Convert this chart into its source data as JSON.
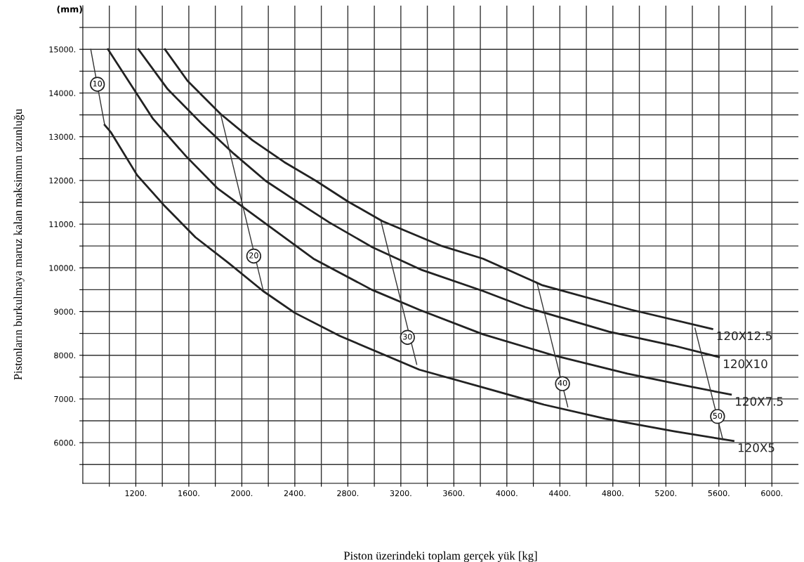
{
  "chart_data": {
    "type": "line",
    "xlabel": "Piston üzerindeki toplam gerçek yük [kg]",
    "ylabel": "Pistonların burkulmaya maruz kalan maksimum uzunluğu",
    "xlim": [
      800,
      6200
    ],
    "ylim": [
      5070,
      16000
    ],
    "xticks": [
      {
        "value": 1000,
        "label": null
      },
      {
        "value": 1200,
        "label": "1200."
      },
      {
        "value": 1400,
        "label": null
      },
      {
        "value": 1600,
        "label": "1600."
      },
      {
        "value": 1800,
        "label": null
      },
      {
        "value": 2000,
        "label": "2000."
      },
      {
        "value": 2200,
        "label": null
      },
      {
        "value": 2400,
        "label": "2400."
      },
      {
        "value": 2600,
        "label": null
      },
      {
        "value": 2800,
        "label": "2800."
      },
      {
        "value": 3000,
        "label": null
      },
      {
        "value": 3200,
        "label": "3200."
      },
      {
        "value": 3400,
        "label": null
      },
      {
        "value": 3600,
        "label": "3600."
      },
      {
        "value": 3800,
        "label": null
      },
      {
        "value": 4000,
        "label": "4000."
      },
      {
        "value": 4200,
        "label": null
      },
      {
        "value": 4400,
        "label": "4400."
      },
      {
        "value": 4600,
        "label": null
      },
      {
        "value": 4800,
        "label": "4800."
      },
      {
        "value": 5000,
        "label": null
      },
      {
        "value": 5200,
        "label": "5200."
      },
      {
        "value": 5400,
        "label": null
      },
      {
        "value": 5600,
        "label": "5600."
      },
      {
        "value": 5800,
        "label": null
      },
      {
        "value": 6000,
        "label": "6000."
      }
    ],
    "yticks": [
      {
        "value": 5500,
        "label": null
      },
      {
        "value": 6000,
        "label": "6000."
      },
      {
        "value": 6500,
        "label": null
      },
      {
        "value": 7000,
        "label": "7000."
      },
      {
        "value": 7500,
        "label": null
      },
      {
        "value": 8000,
        "label": "8000."
      },
      {
        "value": 8500,
        "label": null
      },
      {
        "value": 9000,
        "label": "9000."
      },
      {
        "value": 9500,
        "label": null
      },
      {
        "value": 10000,
        "label": "10000."
      },
      {
        "value": 10500,
        "label": null
      },
      {
        "value": 11000,
        "label": "11000."
      },
      {
        "value": 11500,
        "label": null
      },
      {
        "value": 12000,
        "label": "12000."
      },
      {
        "value": 12500,
        "label": null
      },
      {
        "value": 13000,
        "label": "13000."
      },
      {
        "value": 13500,
        "label": null
      },
      {
        "value": 14000,
        "label": "14000."
      },
      {
        "value": 14500,
        "label": null
      },
      {
        "value": 15000,
        "label": "15000."
      },
      {
        "value": 15500,
        "label": null
      }
    ],
    "grid": true,
    "legend": false,
    "marker": "none",
    "line_style": "solid",
    "series": [
      {
        "name": "120X12.5",
        "color": "#222222",
        "x": [
          1420,
          1590,
          1840,
          2080,
          2320,
          2560,
          2800,
          3060,
          3500,
          3820,
          4270,
          4940,
          5550
        ],
        "values": [
          15000,
          14280,
          13520,
          12920,
          12420,
          11990,
          11520,
          11070,
          10510,
          10210,
          9600,
          9040,
          8600
        ]
      },
      {
        "name": "120X10",
        "color": "#222222",
        "x": [
          1220,
          1440,
          1700,
          1940,
          2180,
          2440,
          2660,
          2980,
          3360,
          3820,
          4140,
          4770,
          5260,
          5600
        ],
        "values": [
          15000,
          14090,
          13290,
          12610,
          11990,
          11470,
          11040,
          10480,
          9950,
          9470,
          9100,
          8540,
          8220,
          7960
        ]
      },
      {
        "name": "120X7.5",
        "color": "#222222",
        "x": [
          990,
          1330,
          1580,
          1820,
          2180,
          2540,
          2980,
          3340,
          3820,
          4350,
          4910,
          5340,
          5690
        ],
        "values": [
          15000,
          13410,
          12550,
          11810,
          11010,
          10210,
          9500,
          9040,
          8480,
          8000,
          7580,
          7310,
          7100
        ]
      },
      {
        "name": "120X5",
        "color": "#222222",
        "x": [
          965,
          1010,
          1210,
          1410,
          1650,
          1900,
          2160,
          2400,
          2740,
          3340,
          3860,
          4280,
          4740,
          5260,
          5710
        ],
        "values": [
          13270,
          13110,
          12120,
          11440,
          10700,
          10110,
          9470,
          8970,
          8440,
          7670,
          7230,
          6870,
          6550,
          6260,
          6040
        ]
      },
      {
        "color": "#333333",
        "x": [
          860,
          965
        ],
        "values": [
          15000,
          13270
        ]
      },
      {
        "color": "#333333",
        "x": [
          1840,
          2160
        ],
        "values": [
          13520,
          9500
        ]
      },
      {
        "color": "#333333",
        "x": [
          3050,
          3320
        ],
        "values": [
          11070,
          7790
        ]
      },
      {
        "color": "#333333",
        "x": [
          4230,
          4460
        ],
        "values": [
          9630,
          6820
        ]
      },
      {
        "color": "#333333",
        "x": [
          5420,
          5630
        ],
        "values": [
          8620,
          6070
        ]
      }
    ],
    "annotations": [
      "(mm)",
      {
        "text": "10",
        "x": 910,
        "y": 14200
      },
      {
        "text": "20",
        "x": 2090,
        "y": 10270
      },
      {
        "text": "30",
        "x": 3250,
        "y": 8410
      },
      {
        "text": "40",
        "x": 4420,
        "y": 7350
      },
      {
        "text": "50",
        "x": 5590,
        "y": 6600
      }
    ]
  }
}
